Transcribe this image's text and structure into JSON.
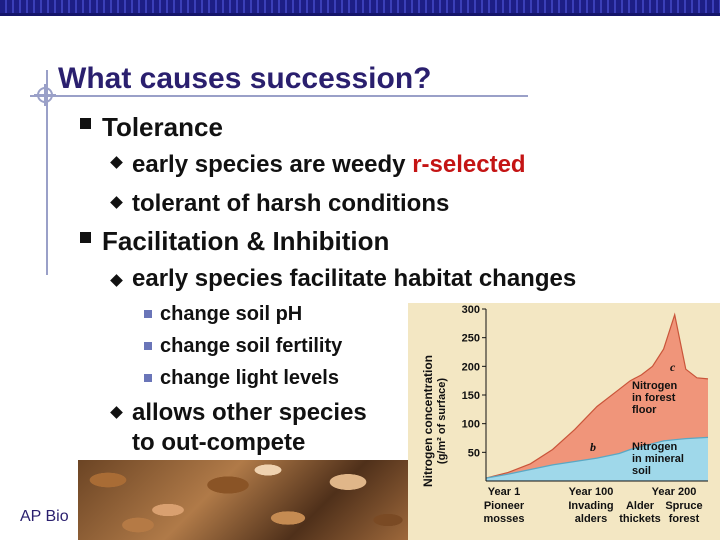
{
  "slide": {
    "title": "What causes succession?",
    "bullets": {
      "tolerance": "Tolerance",
      "early_weedy_prefix": "early species are weedy ",
      "early_weedy_highlight": "r-selected",
      "tolerant": "tolerant of harsh conditions",
      "facilitation": "Facilitation & Inhibition",
      "facilitate": "early species facilitate habitat changes",
      "sub1": "change soil pH",
      "sub2": "change soil fertility",
      "sub3": "change light levels",
      "allows_line1": "allows other species",
      "allows_line2": "to out-compete"
    },
    "footer": "AP Bio",
    "colors": {
      "title": "#2a1f6e",
      "highlight": "#c41414",
      "topbar": "#1d1e86"
    }
  },
  "chart_data": {
    "type": "area",
    "title": "",
    "ylabel": "Nitrogen concentration",
    "ylabel_units": "(g/m² of surface)",
    "ylim": [
      0,
      300
    ],
    "yticks": [
      50,
      100,
      150,
      200,
      250,
      300
    ],
    "x_labels": [
      {
        "year": "Year 1",
        "stage": "Pioneer mosses"
      },
      {
        "year": "Year 100",
        "stage": "Invading alders"
      },
      {
        "year": "Alder thickets",
        "stage": ""
      },
      {
        "year": "Year 200",
        "stage": "Spruce forest"
      }
    ],
    "x": [
      0,
      10,
      20,
      30,
      40,
      50,
      60,
      65,
      70,
      75,
      80,
      85,
      90,
      95,
      100
    ],
    "series": [
      {
        "name": "Nitrogen in mineral soil",
        "values": [
          5,
          12,
          20,
          28,
          34,
          40,
          48,
          55,
          60,
          65,
          70,
          72,
          74,
          75,
          76
        ]
      },
      {
        "name": "Nitrogen in forest floor",
        "values": [
          5,
          15,
          30,
          55,
          90,
          130,
          160,
          175,
          185,
          200,
          230,
          290,
          195,
          180,
          178
        ]
      }
    ],
    "annotations": [
      "b",
      "c"
    ],
    "colors": {
      "soil": "#9fd8ea",
      "forest_floor": "#f0957a",
      "background": "#f3e7c3"
    }
  }
}
